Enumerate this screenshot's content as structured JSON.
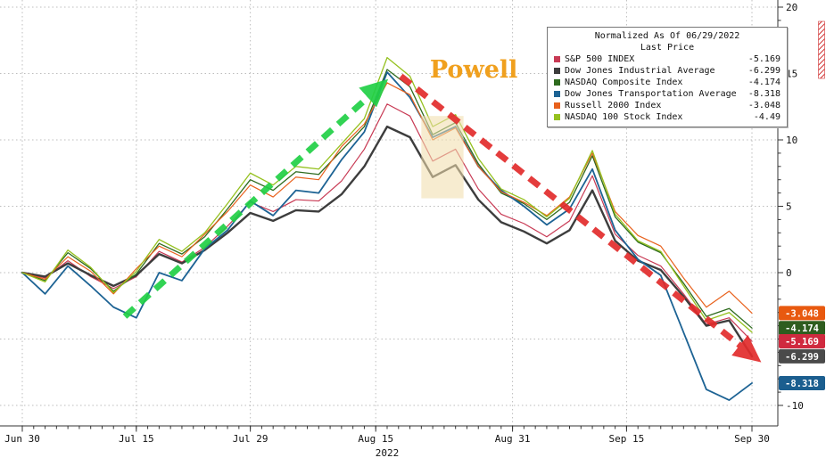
{
  "chart_data": {
    "type": "line",
    "title": "",
    "legend_title": "Normalized As Of 06/29/2022",
    "legend_subtitle": "Last Price",
    "year_label": "2022",
    "ylim": [
      -10,
      20
    ],
    "y_ticks": [
      20,
      15,
      10,
      5,
      0,
      -5,
      -10
    ],
    "x_ticks": [
      {
        "label": "Jun 30",
        "day": 0
      },
      {
        "label": "Jul 15",
        "day": 10
      },
      {
        "label": "Jul 29",
        "day": 20
      },
      {
        "label": "Aug 15",
        "day": 31
      },
      {
        "label": "Aug 31",
        "day": 43
      },
      {
        "label": "Sep 15",
        "day": 53
      },
      {
        "label": "Sep 30",
        "day": 64
      }
    ],
    "x_days": [
      0,
      2,
      4,
      6,
      8,
      10,
      12,
      14,
      16,
      18,
      20,
      22,
      24,
      26,
      28,
      30,
      32,
      34,
      36,
      38,
      40,
      42,
      44,
      46,
      48,
      50,
      52,
      54,
      56,
      58,
      60,
      62,
      64
    ],
    "series": [
      {
        "name": "S&P 500 INDEX",
        "last": "-5.169",
        "color": "#c83a54",
        "width": 1.2,
        "values": [
          0.0,
          -0.4,
          0.9,
          -0.3,
          -1.2,
          -0.3,
          1.6,
          0.8,
          1.9,
          3.5,
          5.3,
          4.6,
          5.5,
          5.4,
          6.9,
          9.3,
          12.7,
          11.8,
          8.4,
          9.3,
          6.3,
          4.4,
          3.7,
          2.7,
          3.9,
          7.3,
          2.9,
          1.3,
          0.5,
          -1.6,
          -3.9,
          -3.4,
          -5.169
        ]
      },
      {
        "name": "Dow Jones Industrial Average",
        "last": "-6.299",
        "color": "#3d3d3d",
        "width": 2.4,
        "values": [
          0.0,
          -0.3,
          0.7,
          -0.2,
          -1.0,
          -0.2,
          1.4,
          0.7,
          1.7,
          3.0,
          4.5,
          3.9,
          4.7,
          4.6,
          5.9,
          8.0,
          11.0,
          10.2,
          7.2,
          8.1,
          5.5,
          3.8,
          3.1,
          2.2,
          3.2,
          6.2,
          2.4,
          0.9,
          0.2,
          -1.8,
          -4.0,
          -3.6,
          -6.299
        ]
      },
      {
        "name": "NASDAQ Composite Index",
        "last": "-4.174",
        "color": "#2e6b1e",
        "width": 1.3,
        "values": [
          0.0,
          -0.6,
          1.5,
          0.3,
          -1.4,
          -0.1,
          2.2,
          1.4,
          2.7,
          4.8,
          7.0,
          6.2,
          7.6,
          7.4,
          9.2,
          11.0,
          15.3,
          14.0,
          10.4,
          11.3,
          8.2,
          6.0,
          5.2,
          4.0,
          5.3,
          8.8,
          4.2,
          2.3,
          1.5,
          -0.8,
          -3.3,
          -2.7,
          -4.174
        ]
      },
      {
        "name": "Dow Jones Transportation Average",
        "last": "-8.318",
        "color": "#1d6394",
        "width": 1.8,
        "values": [
          0.0,
          -1.6,
          0.5,
          -1.0,
          -2.6,
          -3.4,
          0.0,
          -0.6,
          1.8,
          3.2,
          5.4,
          4.3,
          6.2,
          6.0,
          8.5,
          10.6,
          15.1,
          13.2,
          10.2,
          11.0,
          8.0,
          6.2,
          5.0,
          3.6,
          4.8,
          7.8,
          3.2,
          1.0,
          -0.2,
          -4.5,
          -8.8,
          -9.6,
          -8.318
        ]
      },
      {
        "name": "Russell 2000 Index",
        "last": "-3.048",
        "color": "#e8611c",
        "width": 1.2,
        "values": [
          0.0,
          -0.5,
          1.2,
          0.1,
          -1.6,
          0.3,
          2.0,
          1.2,
          2.9,
          4.6,
          6.6,
          5.7,
          7.2,
          7.0,
          9.5,
          11.2,
          14.3,
          13.4,
          10.0,
          10.9,
          8.0,
          6.1,
          5.3,
          4.3,
          5.7,
          9.0,
          4.6,
          2.8,
          2.0,
          -0.4,
          -2.6,
          -1.4,
          -3.048
        ]
      },
      {
        "name": "NASDAQ 100 Stock Index",
        "last": "-4.49",
        "color": "#95c11f",
        "width": 1.3,
        "values": [
          0.0,
          -0.7,
          1.7,
          0.4,
          -1.5,
          0.1,
          2.5,
          1.6,
          3.0,
          5.2,
          7.5,
          6.6,
          8.0,
          7.8,
          9.7,
          11.6,
          16.2,
          14.8,
          11.0,
          11.9,
          8.6,
          6.3,
          5.5,
          4.2,
          5.6,
          9.2,
          4.4,
          2.4,
          1.6,
          -1.0,
          -3.6,
          -3.0,
          -4.49
        ]
      }
    ],
    "badges": [
      {
        "label": "-3.048",
        "color": "#e8590f",
        "value": -3.048
      },
      {
        "label": "-4.174",
        "color": "#2f5d1f",
        "value": -4.174
      },
      {
        "label": "-5.169",
        "color": "#d02a3f",
        "value": -5.169
      },
      {
        "label": "-6.299",
        "color": "#4a4a4a",
        "value": -6.299
      },
      {
        "label": "-8.318",
        "color": "#1b5e8f",
        "value": -8.318
      }
    ],
    "annotations": {
      "powell": {
        "text": "Powell",
        "color": "#f0a01e",
        "day": 39.6,
        "value": 14.7
      },
      "highlight_band": {
        "day_from": 35,
        "day_to": 38.7,
        "value_from": 5.6,
        "value_to": 11.8,
        "color": "#f2dfae"
      },
      "arrows": [
        {
          "direction": "up",
          "color": "#21d046",
          "from_day": 9,
          "from_value": -3.3,
          "to_day": 31.6,
          "to_value": 14.2
        },
        {
          "direction": "down",
          "color": "#e22c2c",
          "from_day": 33.2,
          "from_value": 14.8,
          "to_day": 64.3,
          "to_value": -6.4
        }
      ]
    }
  }
}
